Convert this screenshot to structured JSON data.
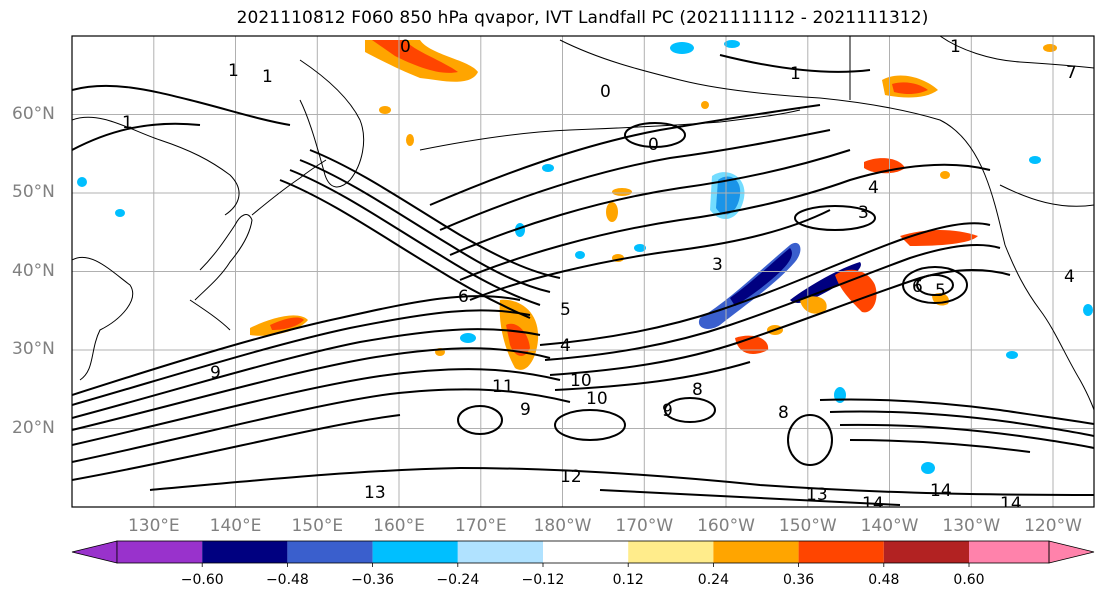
{
  "title": "2021110812 F060 850 hPa qvapor, IVT Landfall PC (2021111112 - 2021111312)",
  "map": {
    "lat_labels": [
      "60°N",
      "50°N",
      "40°N",
      "30°N",
      "20°N"
    ],
    "lon_labels": [
      "130°E",
      "140°E",
      "150°E",
      "160°E",
      "170°E",
      "180°W",
      "170°W",
      "160°W",
      "150°W",
      "140°W",
      "130°W",
      "120°W"
    ],
    "extent": {
      "lon_min": 120,
      "lon_max": 245,
      "lat_min": 10,
      "lat_max": 70
    },
    "contour_labels": [
      "0",
      "1",
      "1",
      "1",
      "0",
      "0",
      "1",
      "1",
      "4",
      "3",
      "3",
      "5",
      "6",
      "6",
      "5",
      "4",
      "10",
      "11",
      "9",
      "9",
      "8",
      "9",
      "8",
      "10",
      "12",
      "13",
      "13",
      "14",
      "14",
      "14",
      "4",
      "7"
    ],
    "colors": {
      "land_outline": "#000000",
      "gridline": "#b0b0b0",
      "contour": "#000000"
    }
  },
  "colorbar": {
    "colors": [
      "#9932cc",
      "#000080",
      "#3a5fcd",
      "#00bfff",
      "#b0e2ff",
      "#ffffff",
      "#ffec8b",
      "#ffa500",
      "#ff4500",
      "#b22222",
      "#ff82ab"
    ],
    "ticks": [
      "−0.60",
      "−0.48",
      "−0.36",
      "−0.24",
      "−0.12",
      "0.12",
      "0.24",
      "0.36",
      "0.48",
      "0.60"
    ],
    "extend": "both"
  }
}
